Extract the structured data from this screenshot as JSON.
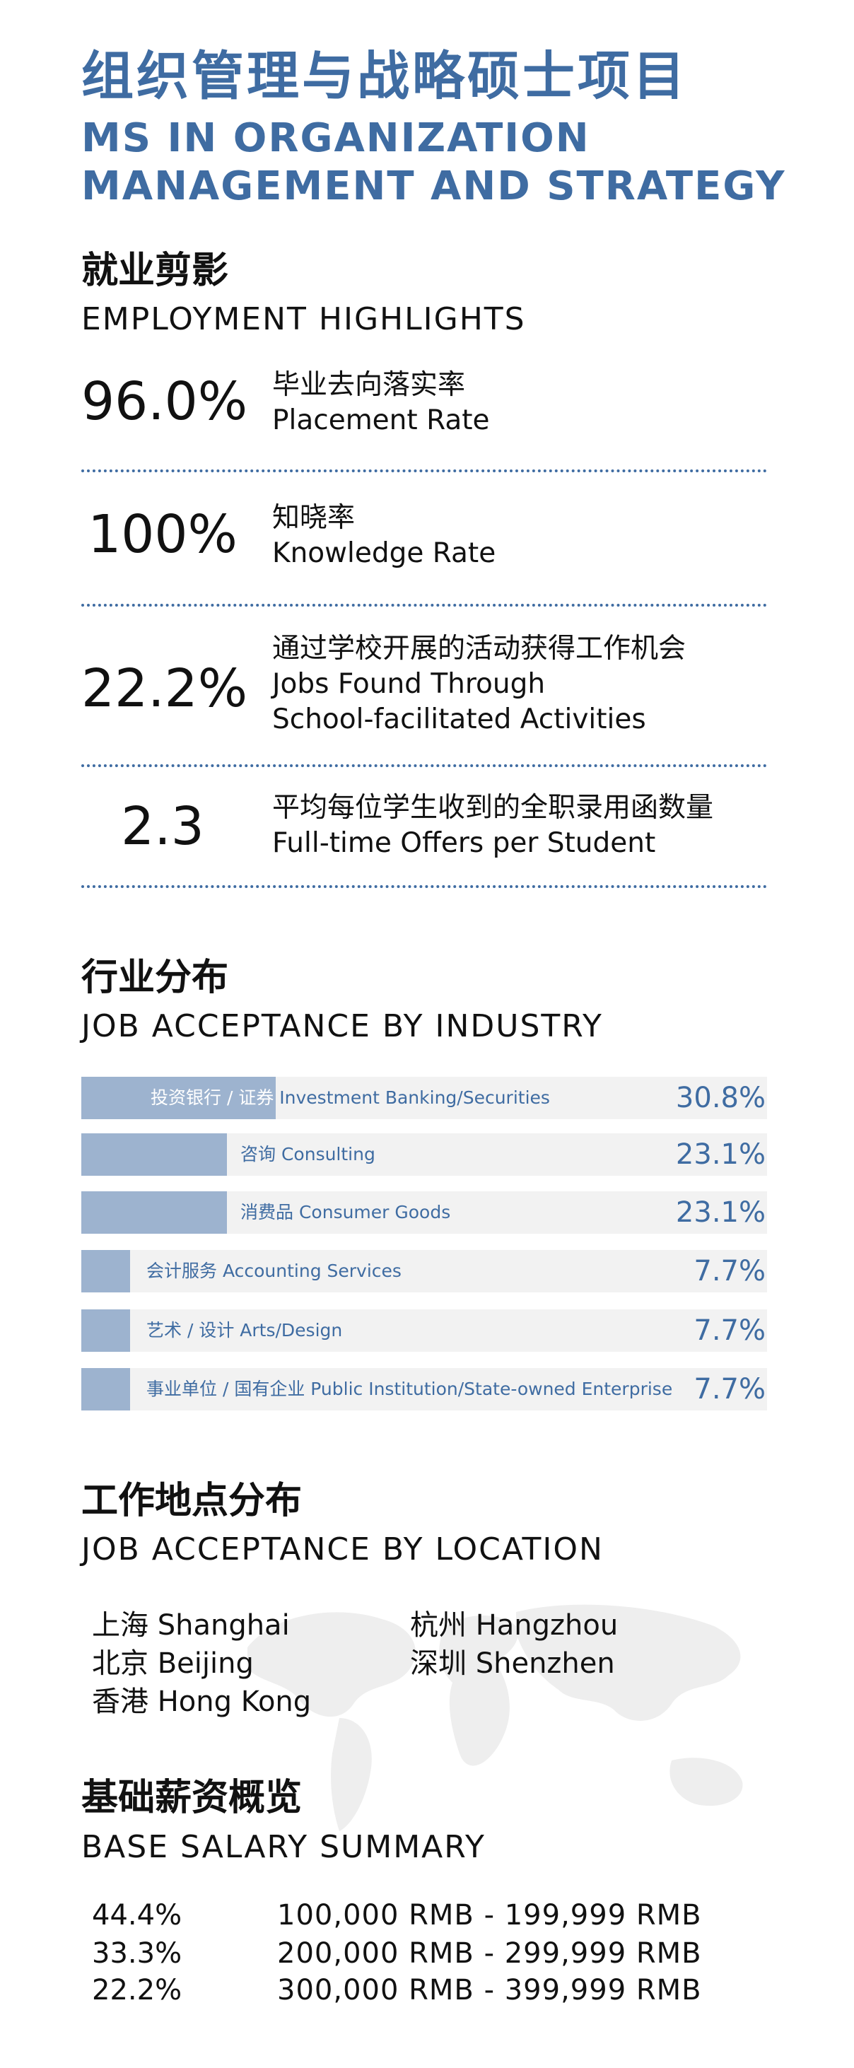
{
  "header": {
    "title_cn": "组织管理与战略硕士项目",
    "title_en_line1": "MS IN ORGANIZATION",
    "title_en_line2": "MANAGEMENT AND STRATEGY"
  },
  "employment": {
    "heading_cn": "就业剪影",
    "heading_en": "EMPLOYMENT HIGHLIGHTS",
    "items": [
      {
        "value": "96.0%",
        "label_cn": "毕业去向落实率",
        "label_en": "Placement Rate",
        "label_en2": ""
      },
      {
        "value": "100%",
        "label_cn": "知晓率",
        "label_en": "Knowledge Rate",
        "label_en2": ""
      },
      {
        "value": "22.2%",
        "label_cn": "通过学校开展的活动获得工作机会",
        "label_en": "Jobs Found Through",
        "label_en2": "School-facilitated Activities"
      },
      {
        "value": "2.3",
        "label_cn": "平均每位学生收到的全职录用函数量",
        "label_en": "Full-time Offers per Student",
        "label_en2": ""
      }
    ]
  },
  "industry": {
    "heading_cn": "行业分布",
    "heading_en": "JOB ACCEPTANCE BY INDUSTRY",
    "accent_color": "#3f6ca2",
    "bar_color": "#9db3cf",
    "items": [
      {
        "label_cn": "投资银行 / 证券",
        "label_en": "Investment Banking/Securities",
        "pct": "30.8%",
        "value": 30.8
      },
      {
        "label_cn": "咨询",
        "label_en": "Consulting",
        "pct": "23.1%",
        "value": 23.1
      },
      {
        "label_cn": "消费品",
        "label_en": "Consumer Goods",
        "pct": "23.1%",
        "value": 23.1
      },
      {
        "label_cn": "会计服务",
        "label_en": "Accounting Services",
        "pct": "7.7%",
        "value": 7.7
      },
      {
        "label_cn": "艺术 / 设计",
        "label_en": "Arts/Design",
        "pct": "7.7%",
        "value": 7.7
      },
      {
        "label_cn": "事业单位 / 国有企业",
        "label_en": "Public Institution/State-owned Enterprise",
        "pct": "7.7%",
        "value": 7.7
      }
    ]
  },
  "location": {
    "heading_cn": "工作地点分布",
    "heading_en": "JOB ACCEPTANCE BY LOCATION",
    "items": [
      "上海 Shanghai",
      "杭州 Hangzhou",
      "北京 Beijing",
      "深圳 Shenzhen",
      "香港 Hong Kong"
    ]
  },
  "salary": {
    "heading_cn": "基础薪资概览",
    "heading_en": "BASE SALARY SUMMARY",
    "items": [
      {
        "pct": "44.4%",
        "range": "100,000 RMB - 199,999 RMB"
      },
      {
        "pct": "33.3%",
        "range": "200,000 RMB - 299,999 RMB"
      },
      {
        "pct": "22.2%",
        "range": "300,000 RMB - 399,999 RMB"
      }
    ]
  }
}
